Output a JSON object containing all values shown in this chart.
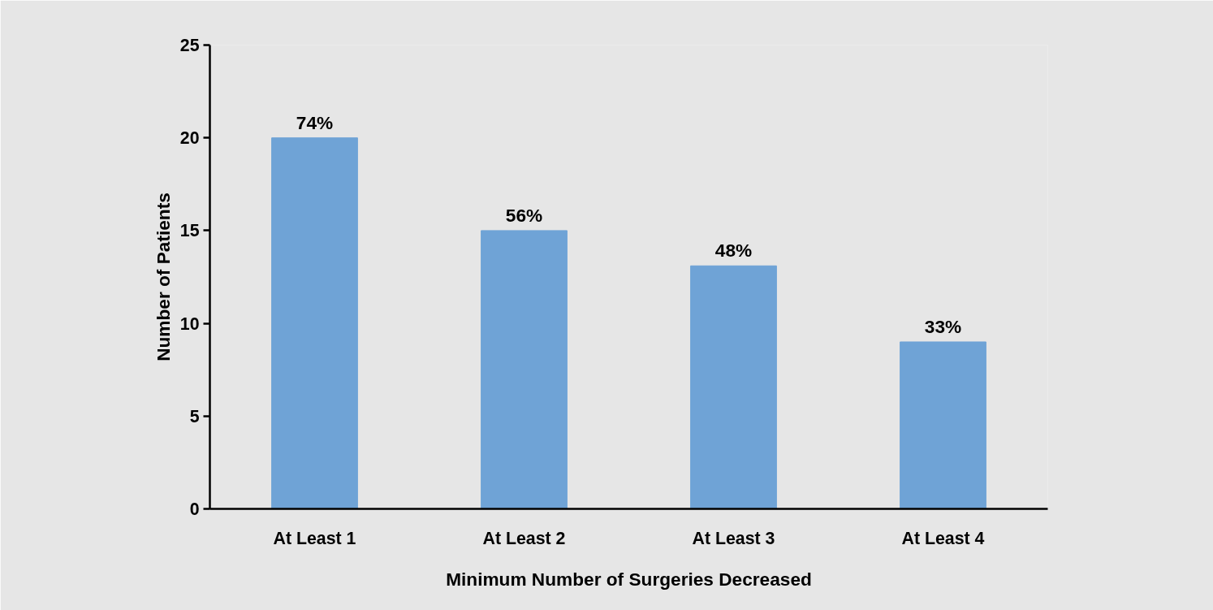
{
  "chart_data": {
    "type": "bar",
    "xlabel": "Minimum Number of Surgeries Decreased",
    "ylabel": "Number of Patients",
    "categories": [
      "At Least 1",
      "At Least 2",
      "At Least 3",
      "At Least 4"
    ],
    "values": [
      20,
      15,
      13.1,
      9
    ],
    "annotations": [
      {
        "text": "74%",
        "x": "At Least 1",
        "y": 20
      },
      {
        "text": "56%",
        "x": "At Least 2",
        "y": 15
      },
      {
        "text": "48%",
        "x": "At Least 3",
        "y": 13.1
      },
      {
        "text": "33%",
        "x": "At Least 4",
        "y": 9
      }
    ],
    "color": "#6fa3d6",
    "ylim": [
      0,
      25
    ],
    "yticks": [
      0,
      5,
      10,
      15,
      20,
      25
    ]
  }
}
